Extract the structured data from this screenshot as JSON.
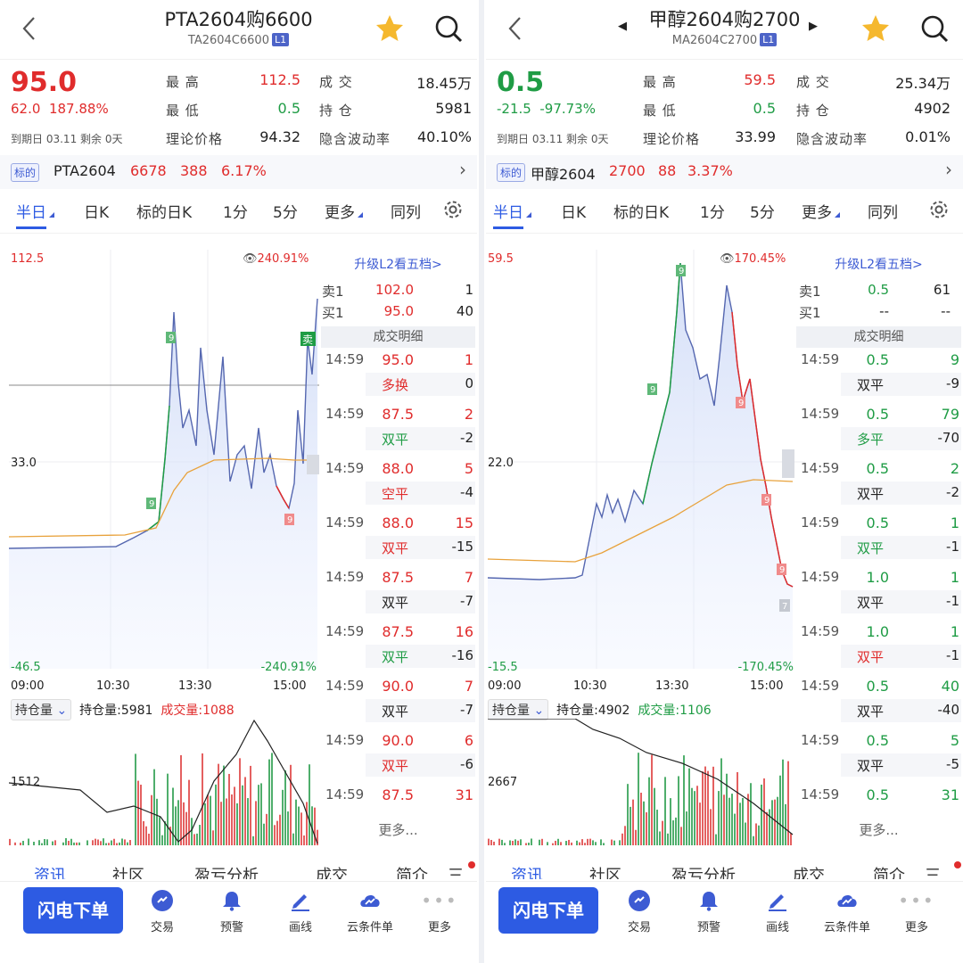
{
  "colors": {
    "up": "#e02c2c",
    "down": "#1f9c45",
    "accent": "#2d5be3",
    "avg_line": "#e8a23c",
    "price_line": "#5567b0"
  },
  "common": {
    "labels": {
      "high": "最 高",
      "low": "最 低",
      "volume": "成 交",
      "open_interest": "持 仓",
      "theo": "理论价格",
      "iv": "隐含波动率"
    },
    "expiry_label": "到期日",
    "remain_label": "剩余",
    "underlying_badge": "标的",
    "tabs": [
      "半日",
      "日K",
      "标的日K",
      "1分",
      "5分",
      "更多",
      "同列"
    ],
    "upgrade": "升级L2看五档>",
    "ask_label": "卖1",
    "bid_label": "买1",
    "trades_header": "成交明细",
    "more_trades": "更多...",
    "vol_selector": "持仓量",
    "oi_prefix": "持仓量:",
    "vol_prefix": "成交量:",
    "bottom_tabs": [
      "资讯",
      "社区",
      "盈亏分析",
      "成交",
      "简介",
      "三"
    ],
    "bottom_bar": {
      "flash": "闪电下单",
      "items": [
        "交易",
        "预警",
        "画线",
        "云条件单",
        "更多"
      ],
      "icons": [
        "trade-icon",
        "alert-bell-icon",
        "draw-line-icon",
        "cloud-order-icon",
        "more-dots-icon"
      ]
    },
    "time_axis": [
      "09:00",
      "10:30",
      "13:30",
      "15:00"
    ]
  },
  "left": {
    "title": "PTA2604购6600",
    "code": "TA2604C6600",
    "level": "L1",
    "price": "95.0",
    "change": "62.0",
    "change_pct": "187.88%",
    "expiry": "03.11",
    "remain": "0天",
    "high": "112.5",
    "low": "0.5",
    "volume": "18.45万",
    "open_interest": "5981",
    "theo": "94.32",
    "iv": "40.10%",
    "underlying": {
      "name": "PTA2604",
      "price": "6678",
      "chg": "388",
      "pct": "6.17%"
    },
    "axis": {
      "top": "112.5",
      "mid": "33.0",
      "bottom": "-46.5",
      "pct_top": "240.91%",
      "pct_bottom": "-240.91%"
    },
    "ask1": {
      "price": "102.0",
      "qty": "1"
    },
    "bid1": {
      "price": "95.0",
      "qty": "40"
    },
    "trades": [
      {
        "time": "14:59",
        "price": "95.0",
        "qty": "1",
        "type": "多换",
        "oi": "0",
        "pc": "red",
        "tc": "red"
      },
      {
        "time": "14:59",
        "price": "87.5",
        "qty": "2",
        "type": "双平",
        "oi": "-2",
        "pc": "red",
        "tc": "green"
      },
      {
        "time": "14:59",
        "price": "88.0",
        "qty": "5",
        "type": "空平",
        "oi": "-4",
        "pc": "red",
        "tc": "red"
      },
      {
        "time": "14:59",
        "price": "88.0",
        "qty": "15",
        "type": "双平",
        "oi": "-15",
        "pc": "red",
        "tc": "red"
      },
      {
        "time": "14:59",
        "price": "87.5",
        "qty": "7",
        "type": "双平",
        "oi": "-7",
        "pc": "red",
        "tc": "dark"
      },
      {
        "time": "14:59",
        "price": "87.5",
        "qty": "16",
        "type": "双平",
        "oi": "-16",
        "pc": "red",
        "tc": "green"
      },
      {
        "time": "14:59",
        "price": "90.0",
        "qty": "7",
        "type": "双平",
        "oi": "-7",
        "pc": "red",
        "tc": "dark"
      },
      {
        "time": "14:59",
        "price": "90.0",
        "qty": "6",
        "type": "双平",
        "oi": "-6",
        "pc": "red",
        "tc": "red"
      },
      {
        "time": "14:59",
        "price": "87.5",
        "qty": "31",
        "type": "",
        "oi": "",
        "pc": "red",
        "tc": "dark"
      }
    ],
    "oi_value": "5981",
    "vol_value": "1088",
    "vol_axis": "1512",
    "marker_sell": "卖",
    "marker_buy": "买"
  },
  "right": {
    "title": "甲醇2604购2700",
    "code": "MA2604C2700",
    "level": "L1",
    "price": "0.5",
    "change": "-21.5",
    "change_pct": "-97.73%",
    "expiry": "03.11",
    "remain": "0天",
    "high": "59.5",
    "low": "0.5",
    "volume": "25.34万",
    "open_interest": "4902",
    "theo": "33.99",
    "iv": "0.01%",
    "underlying": {
      "name": "甲醇2604",
      "price": "2700",
      "chg": "88",
      "pct": "3.37%"
    },
    "axis": {
      "top": "59.5",
      "mid": "22.0",
      "bottom": "-15.5",
      "pct_top": "170.45%",
      "pct_bottom": "-170.45%"
    },
    "ask1": {
      "price": "0.5",
      "qty": "61"
    },
    "bid1": {
      "price": "--",
      "qty": "--"
    },
    "trades": [
      {
        "time": "14:59",
        "price": "0.5",
        "qty": "9",
        "type": "双平",
        "oi": "-9",
        "pc": "green",
        "tc": "dark"
      },
      {
        "time": "14:59",
        "price": "0.5",
        "qty": "79",
        "type": "多平",
        "oi": "-70",
        "pc": "green",
        "tc": "green"
      },
      {
        "time": "14:59",
        "price": "0.5",
        "qty": "2",
        "type": "双平",
        "oi": "-2",
        "pc": "green",
        "tc": "dark"
      },
      {
        "time": "14:59",
        "price": "0.5",
        "qty": "1",
        "type": "双平",
        "oi": "-1",
        "pc": "green",
        "tc": "green"
      },
      {
        "time": "14:59",
        "price": "1.0",
        "qty": "1",
        "type": "双平",
        "oi": "-1",
        "pc": "green",
        "tc": "dark"
      },
      {
        "time": "14:59",
        "price": "1.0",
        "qty": "1",
        "type": "双平",
        "oi": "-1",
        "pc": "green",
        "tc": "red"
      },
      {
        "time": "14:59",
        "price": "0.5",
        "qty": "40",
        "type": "双平",
        "oi": "-40",
        "pc": "green",
        "tc": "dark"
      },
      {
        "time": "14:59",
        "price": "0.5",
        "qty": "5",
        "type": "双平",
        "oi": "-5",
        "pc": "green",
        "tc": "dark"
      },
      {
        "time": "14:59",
        "price": "0.5",
        "qty": "31",
        "type": "",
        "oi": "",
        "pc": "green",
        "tc": "dark"
      }
    ],
    "oi_value": "4902",
    "vol_value": "1106",
    "vol_axis": "2667",
    "marker_last": "7"
  }
}
